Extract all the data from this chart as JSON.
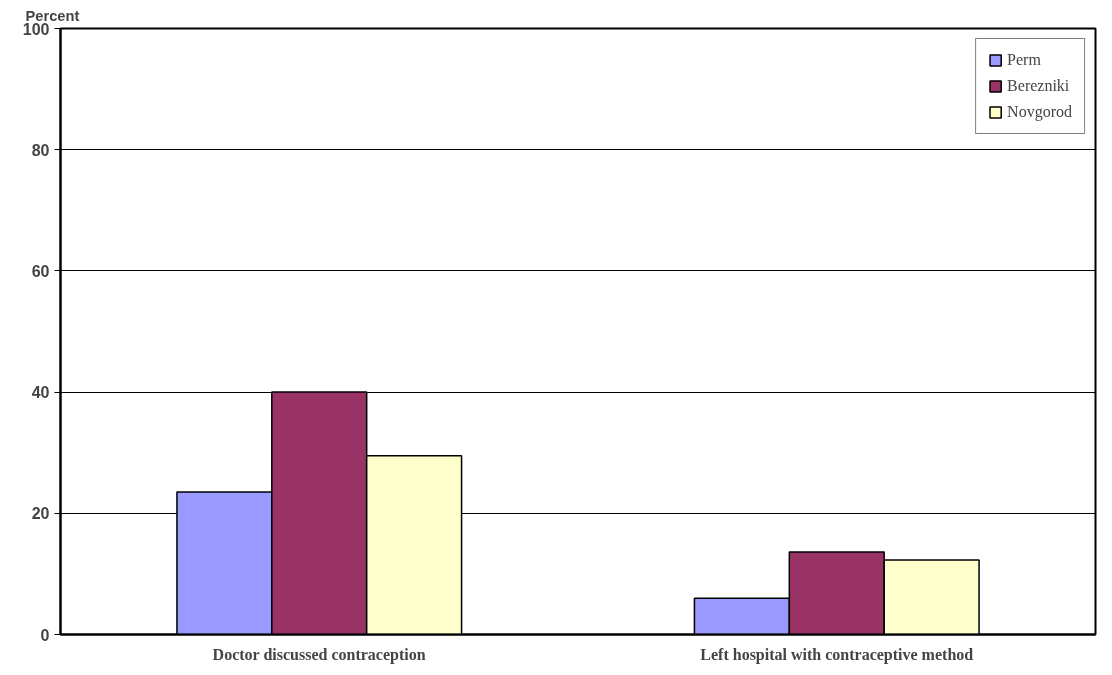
{
  "chart_data": {
    "type": "bar",
    "ylabel": "Percent",
    "categories": [
      "Doctor discussed contraception",
      "Left hospital with contraceptive method"
    ],
    "series": [
      {
        "name": "Perm",
        "color": "#9999ff",
        "values": [
          23.5,
          6
        ]
      },
      {
        "name": "Berezniki",
        "color": "#993366",
        "values": [
          40,
          13.6
        ]
      },
      {
        "name": "Novgorod",
        "color": "#ffffcc",
        "values": [
          29.5,
          12.3
        ]
      }
    ],
    "ylim": [
      0,
      100
    ],
    "yticks": [
      0,
      20,
      40,
      60,
      80,
      100
    ],
    "grid": "y",
    "legend": "top right"
  }
}
